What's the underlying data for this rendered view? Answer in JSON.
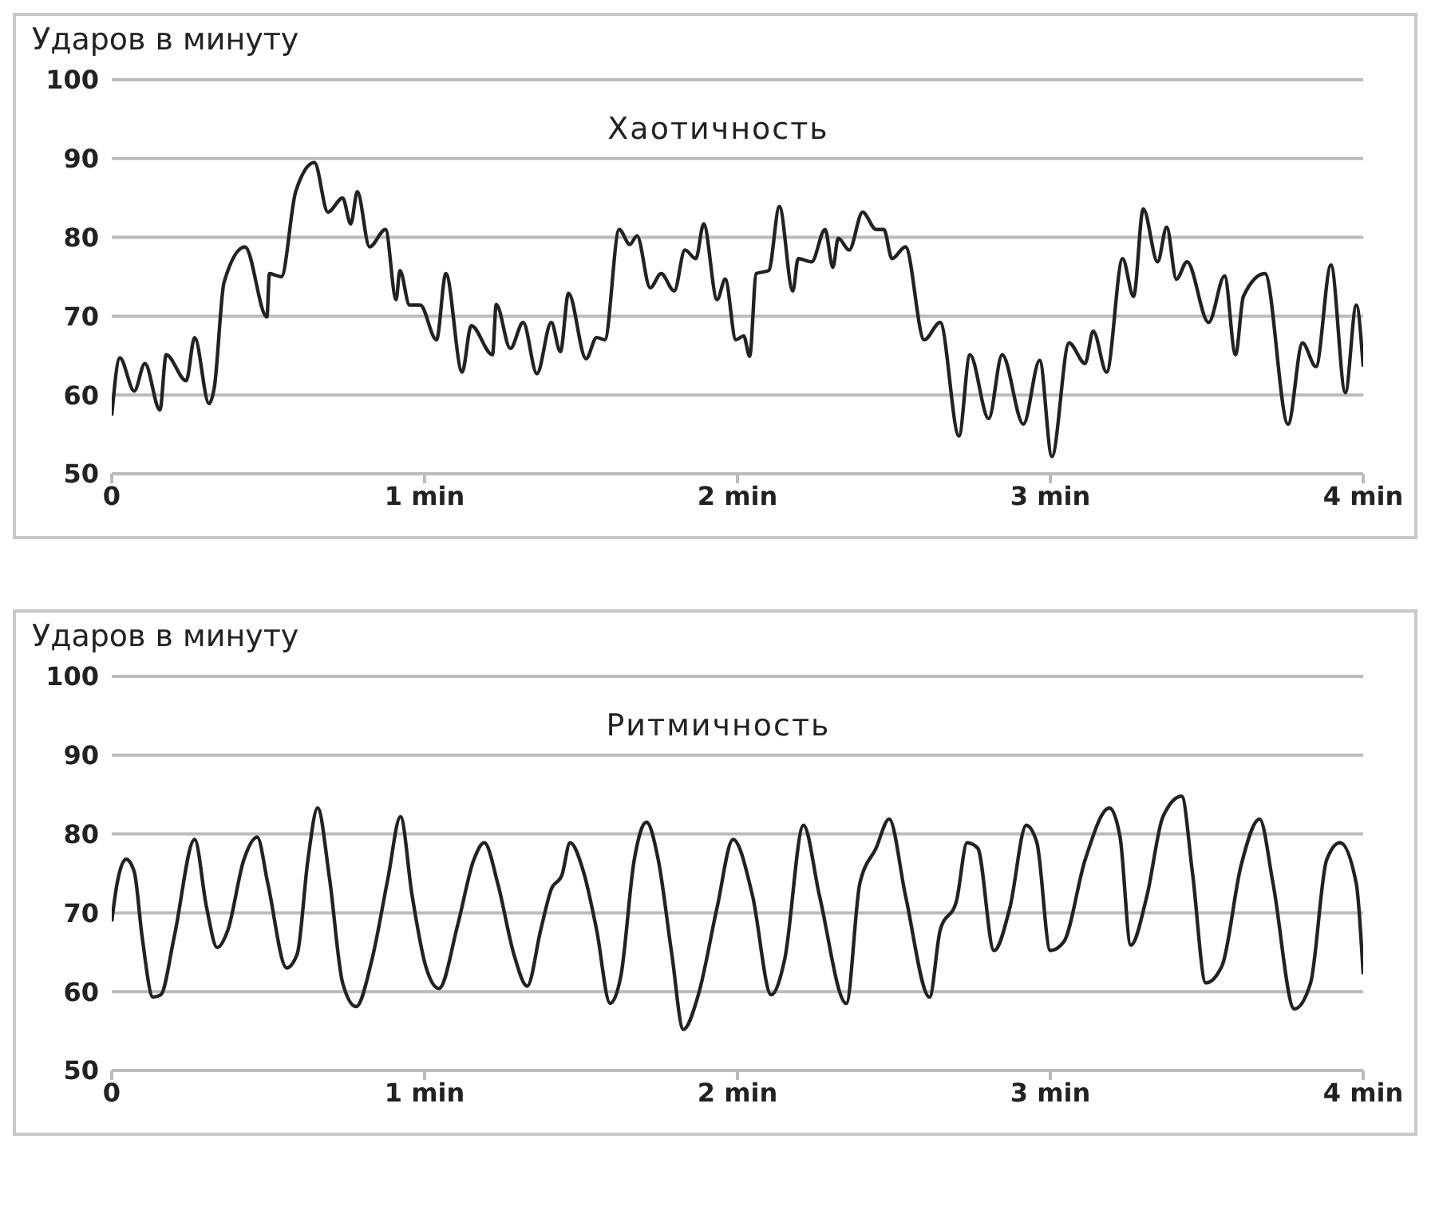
{
  "chart_data": [
    {
      "type": "line",
      "title": "Хаотичность",
      "ylabel": "Ударов в минуту",
      "ylim": [
        50,
        100
      ],
      "yticks": [
        50,
        60,
        70,
        80,
        90,
        100
      ],
      "xlim": [
        0,
        4
      ],
      "xticks": [
        0,
        {
          "value": 1,
          "label": "1 min"
        },
        {
          "value": 2,
          "label": "2 min"
        },
        {
          "value": 3,
          "label": "3 min"
        },
        {
          "value": 4,
          "label": "4 min"
        }
      ],
      "grid": "y",
      "line_style": "solid",
      "series": [
        {
          "color": "#222222",
          "x": [
            0,
            0.026,
            0.072,
            0.106,
            0.154,
            0.174,
            0.238,
            0.265,
            0.311,
            0.328,
            0.359,
            0.426,
            0.496,
            0.504,
            0.542,
            0.588,
            0.648,
            0.691,
            0.738,
            0.764,
            0.785,
            0.824,
            0.875,
            0.909,
            0.921,
            0.952,
            0.986,
            1.038,
            1.068,
            1.12,
            1.149,
            1.217,
            1.229,
            1.274,
            1.315,
            1.359,
            1.405,
            1.434,
            1.46,
            1.516,
            1.55,
            1.576,
            1.622,
            1.656,
            1.679,
            1.721,
            1.756,
            1.798,
            1.832,
            1.867,
            1.892,
            1.935,
            1.961,
            1.995,
            2.02,
            2.039,
            2.06,
            2.1,
            2.134,
            2.177,
            2.194,
            2.237,
            2.28,
            2.305,
            2.322,
            2.357,
            2.4,
            2.443,
            2.468,
            2.494,
            2.537,
            2.597,
            2.648,
            2.708,
            2.743,
            2.803,
            2.846,
            2.914,
            2.966,
            3.005,
            3.06,
            3.111,
            3.137,
            3.18,
            3.231,
            3.266,
            3.297,
            3.343,
            3.372,
            3.403,
            3.437,
            3.506,
            3.557,
            3.592,
            3.617,
            3.686,
            3.76,
            3.806,
            3.849,
            3.897,
            3.943,
            3.978,
            4
          ],
          "values": [
            57.4,
            64.7,
            60.5,
            64,
            58.1,
            65.1,
            61.8,
            67.3,
            58.9,
            61,
            74.3,
            78.8,
            69.9,
            75.4,
            75,
            85.8,
            89.5,
            83.2,
            85,
            81.7,
            85.8,
            78.8,
            81,
            72.1,
            75.8,
            71.4,
            71.4,
            67,
            75.4,
            62.9,
            68.8,
            65.1,
            71.5,
            65.9,
            69.2,
            62.7,
            69.2,
            65.5,
            72.9,
            64.6,
            67.3,
            67,
            81,
            79.1,
            80.2,
            73.6,
            75.4,
            73.2,
            78.4,
            77.3,
            81.7,
            72.1,
            74.7,
            67,
            67.5,
            64.9,
            75.4,
            75.8,
            83.9,
            73.2,
            77.3,
            76.9,
            81,
            76.2,
            79.9,
            78.4,
            83.2,
            81,
            81,
            77.3,
            78.8,
            67,
            69.2,
            54.8,
            65.1,
            57,
            65.1,
            56.3,
            64.4,
            52.2,
            66.6,
            64,
            68.1,
            62.9,
            77.3,
            72.5,
            83.6,
            76.9,
            81.3,
            74.7,
            76.9,
            69.2,
            75.1,
            65.1,
            72.5,
            75.4,
            56.3,
            66.6,
            63.6,
            76.5,
            60.3,
            71.4,
            63.6
          ]
        }
      ]
    },
    {
      "type": "line",
      "title": "Ритмичность",
      "ylabel": "Ударов в минуту",
      "ylim": [
        50,
        100
      ],
      "yticks": [
        50,
        60,
        70,
        80,
        90,
        100
      ],
      "xlim": [
        0,
        4
      ],
      "xticks": [
        0,
        {
          "value": 1,
          "label": "1 min"
        },
        {
          "value": 2,
          "label": "2 min"
        },
        {
          "value": 3,
          "label": "3 min"
        },
        {
          "value": 4,
          "label": "4 min"
        }
      ],
      "grid": "y",
      "line_style": "solid",
      "series": [
        {
          "color": "#222222",
          "x": [
            0,
            0.017,
            0.046,
            0.072,
            0.097,
            0.132,
            0.157,
            0.2,
            0.265,
            0.303,
            0.337,
            0.371,
            0.422,
            0.465,
            0.499,
            0.559,
            0.593,
            0.627,
            0.658,
            0.696,
            0.738,
            0.781,
            0.832,
            0.883,
            0.923,
            0.96,
            1.003,
            1.046,
            1.106,
            1.157,
            1.191,
            1.234,
            1.285,
            1.328,
            1.371,
            1.405,
            1.439,
            1.465,
            1.508,
            1.55,
            1.593,
            1.627,
            1.67,
            1.709,
            1.747,
            1.79,
            1.827,
            1.875,
            1.935,
            1.986,
            2.048,
            2.108,
            2.151,
            2.211,
            2.262,
            2.348,
            2.391,
            2.443,
            2.485,
            2.537,
            2.614,
            2.648,
            2.7,
            2.734,
            2.768,
            2.82,
            2.871,
            2.923,
            2.957,
            3,
            3.043,
            3.111,
            3.189,
            3.223,
            3.257,
            3.309,
            3.36,
            3.42,
            3.454,
            3.497,
            3.549,
            3.609,
            3.669,
            3.712,
            3.78,
            3.832,
            3.883,
            3.926,
            3.978,
            4
          ],
          "values": [
            68.9,
            73.7,
            76.8,
            75.2,
            67,
            59.3,
            59.6,
            67,
            79.3,
            70.7,
            65.6,
            67.8,
            76.7,
            79.6,
            73.7,
            63,
            64.8,
            76.7,
            83.3,
            74.4,
            61.1,
            58.1,
            64.1,
            74.4,
            82.2,
            72.2,
            63.3,
            60.4,
            68.5,
            76.7,
            78.9,
            73.7,
            64.8,
            60.7,
            67.8,
            73,
            74.8,
            78.9,
            75.2,
            67.8,
            58.5,
            61.9,
            76.7,
            81.5,
            76.7,
            64.8,
            55.2,
            59.6,
            70.7,
            79.3,
            72.2,
            59.6,
            64.1,
            81.1,
            72.2,
            58.5,
            73.7,
            78.2,
            81.9,
            72.2,
            59.3,
            67.8,
            71.5,
            78.9,
            78.2,
            65.2,
            70.7,
            81.1,
            78.9,
            65.2,
            66.3,
            76.7,
            83.3,
            79.6,
            65.9,
            72.2,
            82.2,
            84.8,
            75.2,
            61.1,
            63.3,
            75.9,
            81.9,
            73.7,
            57.8,
            61.1,
            76.7,
            78.9,
            73.7,
            62.2
          ]
        }
      ]
    }
  ]
}
